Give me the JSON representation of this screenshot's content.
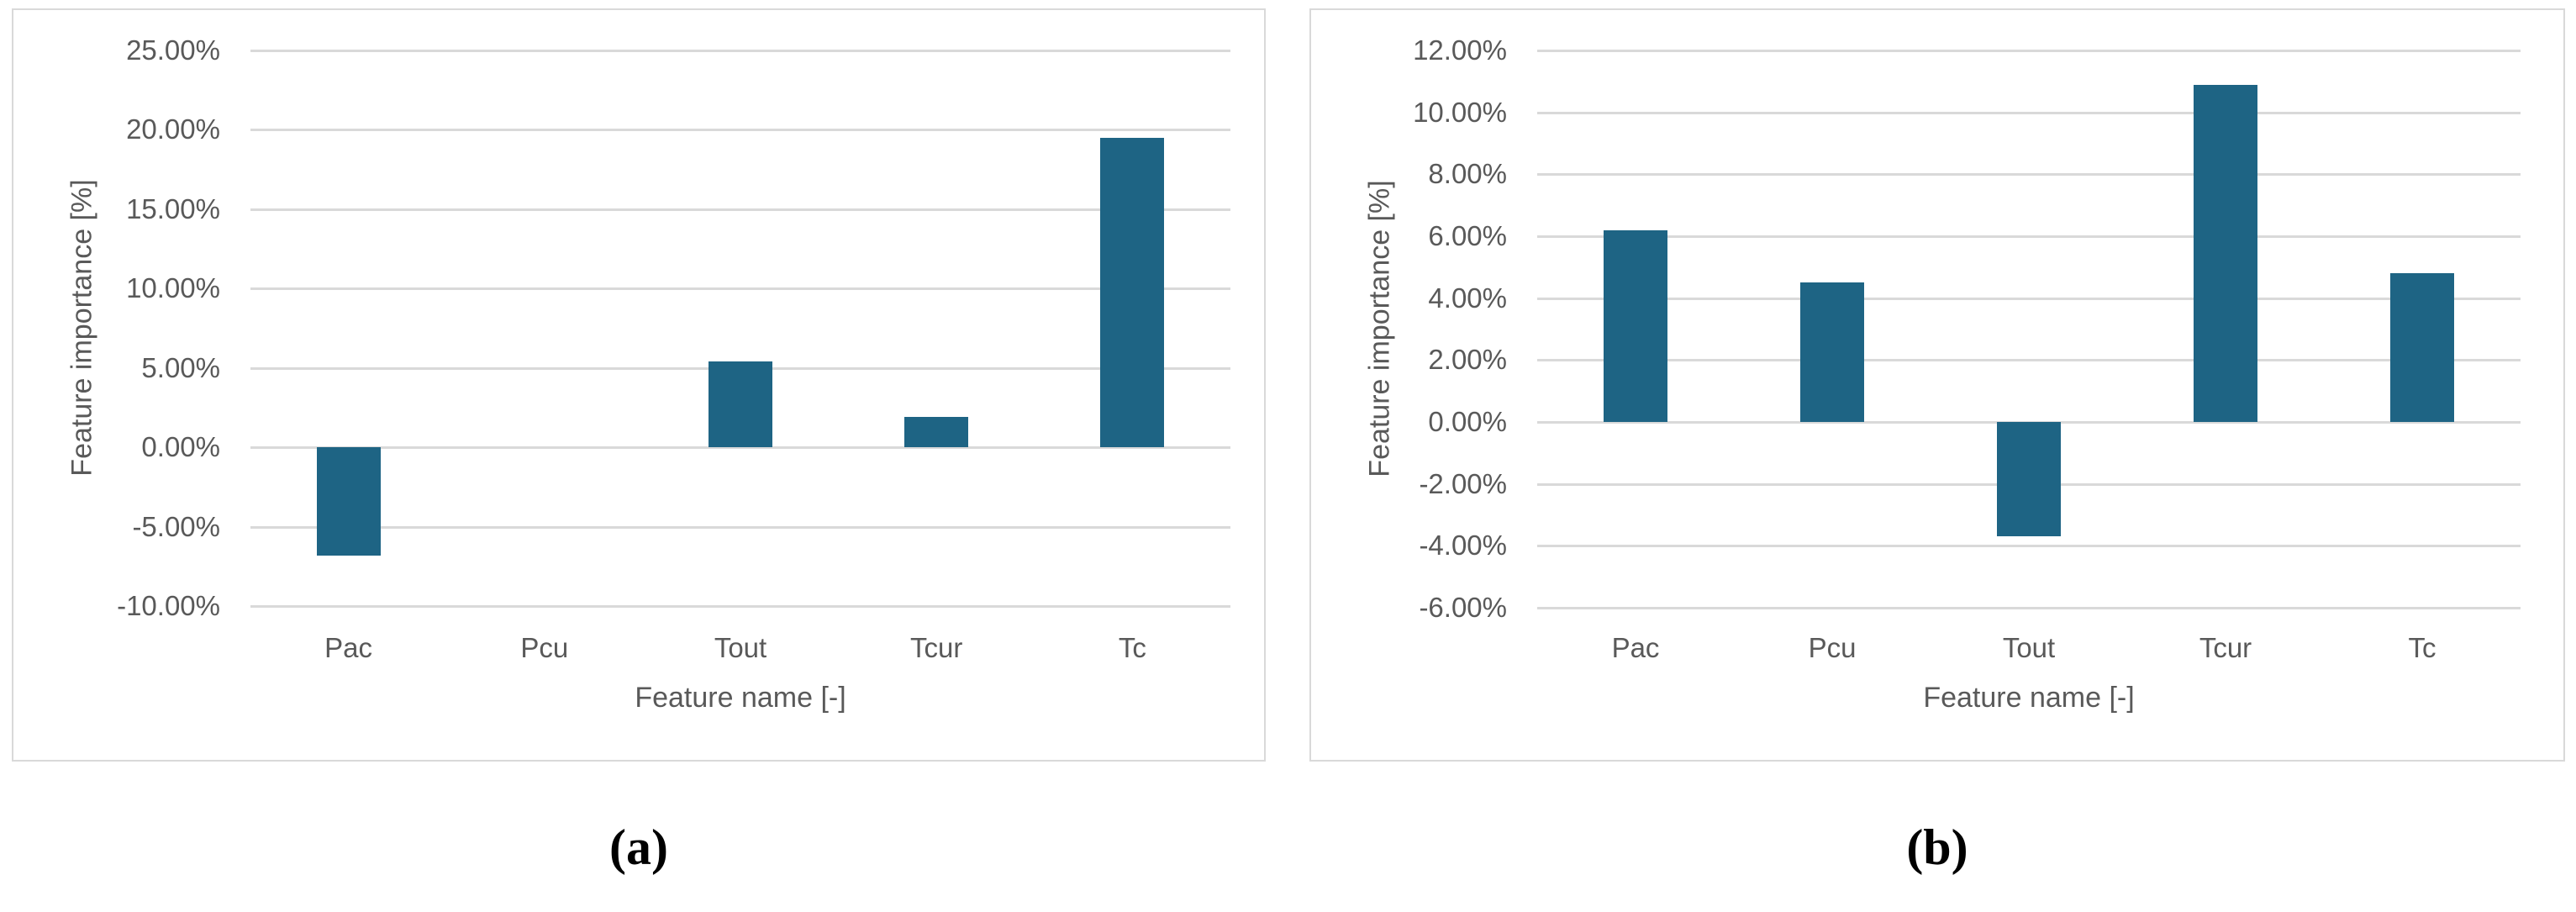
{
  "figure": {
    "background": "#ffffff",
    "text_color": "#595959",
    "gridline_color": "#d9d9d9",
    "panel_border_color": "#d9d9d9"
  },
  "chart_data": [
    {
      "id": "a",
      "type": "bar",
      "caption": "(a)",
      "title": "",
      "xlabel": "Feature name [-]",
      "ylabel": "Feature importance [%]",
      "categories": [
        "Pac",
        "Pcu",
        "Tout",
        "Tcur",
        "Tc"
      ],
      "values": [
        -6.8,
        0.0,
        5.4,
        1.9,
        19.5
      ],
      "ylim": [
        -10,
        25
      ],
      "ytick_step": 5,
      "ytick_labels": [
        "25.00%",
        "20.00%",
        "15.00%",
        "10.00%",
        "5.00%",
        "0.00%",
        "-5.00%",
        "-10.00%"
      ],
      "grid": true,
      "legend": false,
      "bar_color": "#1E6484"
    },
    {
      "id": "b",
      "type": "bar",
      "caption": "(b)",
      "title": "",
      "xlabel": "Feature name [-]",
      "ylabel": "Feature importance [%]",
      "categories": [
        "Pac",
        "Pcu",
        "Tout",
        "Tcur",
        "Tc"
      ],
      "values": [
        6.2,
        4.5,
        -3.7,
        10.9,
        4.8
      ],
      "ylim": [
        -6,
        12
      ],
      "ytick_step": 2,
      "ytick_labels": [
        "12.00%",
        "10.00%",
        "8.00%",
        "6.00%",
        "4.00%",
        "2.00%",
        "0.00%",
        "-2.00%",
        "-4.00%",
        "-6.00%"
      ],
      "grid": true,
      "legend": false,
      "bar_color": "#1E6484"
    }
  ]
}
